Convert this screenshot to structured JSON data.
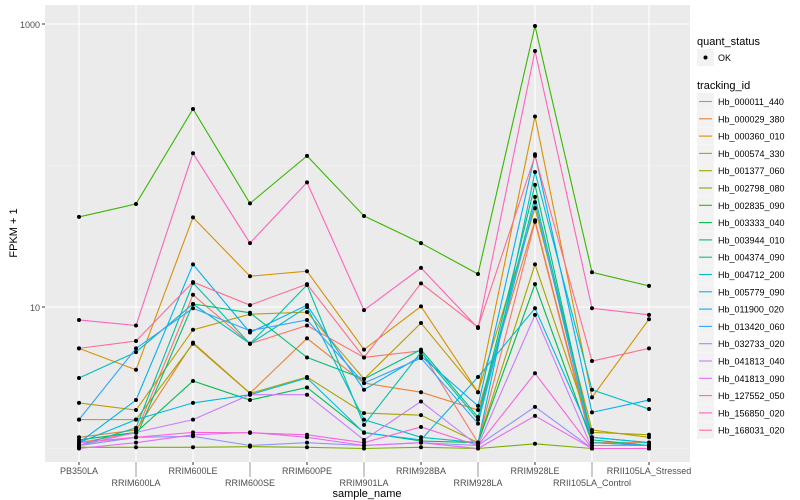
{
  "chart_data": {
    "type": "line",
    "xlabel": "sample_name",
    "ylabel": "FPKM + 1",
    "y_scale": "log10",
    "y_ticks": [
      10,
      1000
    ],
    "ylim": [
      0.8,
      1360
    ],
    "grid": true,
    "legend_position": "right",
    "categories": [
      "PB350LA",
      "RRIM600LA",
      "RRIM600LE",
      "RRIM600SE",
      "RRIM600PE",
      "RRIM901LA",
      "RRIM928BA",
      "RRIM928LA",
      "RRIM928LE",
      "RRII105LA_Control",
      "RRII105LA_Stressed"
    ],
    "point_legend": {
      "title": "quant_status",
      "entries": [
        "OK"
      ]
    },
    "line_legend_title": "tracking_id",
    "series": [
      {
        "name": "Hb_000011_440",
        "color": "#F8766D",
        "values": [
          1.1,
          1.29,
          12.2,
          5.5,
          7.4,
          4.4,
          4.9,
          1.1,
          40,
          1.05,
          1.05
        ]
      },
      {
        "name": "Hb_000029_380",
        "color": "#EA8331",
        "values": [
          1.2,
          1.35,
          5.6,
          2.46,
          6.0,
          2.9,
          2.5,
          1.87,
          41,
          1.1,
          1.1
        ]
      },
      {
        "name": "Hb_000360_010",
        "color": "#D89000",
        "values": [
          5.1,
          3.6,
          43,
          16.5,
          17.9,
          5.0,
          10.1,
          2.5,
          222,
          2.3,
          8.2
        ]
      },
      {
        "name": "Hb_000574_330",
        "color": "#C09B00",
        "values": [
          2.1,
          1.87,
          6.9,
          8.9,
          9.2,
          3.1,
          7.7,
          2.5,
          50,
          1.35,
          1.2
        ]
      },
      {
        "name": "Hb_001377_060",
        "color": "#A3A500",
        "values": [
          1.6,
          1.6,
          5.5,
          2.45,
          3.2,
          1.78,
          1.72,
          1.1,
          20,
          1.3,
          1.25
        ]
      },
      {
        "name": "Hb_002798_080",
        "color": "#7CAE00",
        "values": [
          1.02,
          1.02,
          1.02,
          1.03,
          1.02,
          1.0,
          1.02,
          1.0,
          1.08,
          1.0,
          1.0
        ]
      },
      {
        "name": "Hb_002835_090",
        "color": "#39B600",
        "values": [
          43.3,
          53.5,
          251,
          54,
          117,
          44,
          28.3,
          17.1,
          968,
          17.6,
          14.1
        ]
      },
      {
        "name": "Hb_003333_040",
        "color": "#00BB4E",
        "values": [
          1.15,
          1.3,
          3.0,
          2.2,
          2.7,
          1.3,
          1.13,
          1.1,
          14.5,
          1.1,
          1.05
        ]
      },
      {
        "name": "Hb_003944_010",
        "color": "#00BF7D",
        "values": [
          1.05,
          1.2,
          10.5,
          9.1,
          4.4,
          3.1,
          5.0,
          1.67,
          73,
          1.15,
          1.05
        ]
      },
      {
        "name": "Hb_004374_090",
        "color": "#00C1A3",
        "values": [
          1.05,
          1.4,
          14.8,
          5.5,
          14.3,
          1.47,
          4.8,
          1.6,
          60,
          1.2,
          1.1
        ]
      },
      {
        "name": "Hb_004712_200",
        "color": "#00BFC4",
        "values": [
          3.15,
          4.8,
          10.5,
          5.5,
          10,
          1.6,
          1.2,
          1.1,
          90,
          2.6,
          1.9
        ]
      },
      {
        "name": "Hb_005779_090",
        "color": "#00BAE0",
        "values": [
          1.1,
          1.6,
          2.1,
          2.4,
          3.15,
          1.29,
          1.15,
          3.2,
          9.8,
          1.2,
          1.1
        ]
      },
      {
        "name": "Hb_011900_020",
        "color": "#00B0F6",
        "values": [
          1.1,
          2.2,
          20,
          6.6,
          10.3,
          2.6,
          4.5,
          2.0,
          120,
          1.8,
          2.2
        ]
      },
      {
        "name": "Hb_013420_060",
        "color": "#35A2FF",
        "values": [
          1.6,
          5.1,
          9.8,
          6.8,
          8.1,
          2.9,
          4.35,
          1.5,
          55,
          1.1,
          1.05
        ]
      },
      {
        "name": "Hb_032733_020",
        "color": "#9590FF",
        "values": [
          1.05,
          1.2,
          1.22,
          1.05,
          1.1,
          1.05,
          1.1,
          1.05,
          1.97,
          1.0,
          1.0
        ]
      },
      {
        "name": "Hb_041813_040",
        "color": "#C77CFF",
        "values": [
          1.05,
          1.3,
          1.6,
          2.4,
          2.4,
          1.15,
          2.15,
          1.05,
          8.8,
          1.0,
          1.0
        ]
      },
      {
        "name": "Hb_041813_090",
        "color": "#E76BF3",
        "values": [
          1.0,
          1.1,
          1.25,
          1.3,
          1.2,
          1.05,
          1.1,
          1.0,
          1.7,
          1.0,
          1.0
        ]
      },
      {
        "name": "Hb_127552_050",
        "color": "#FA62DB",
        "values": [
          1.1,
          1.2,
          1.3,
          1.29,
          1.25,
          1.1,
          1.42,
          1.05,
          3.4,
          1.0,
          1.0
        ]
      },
      {
        "name": "Hb_156850_020",
        "color": "#FF62BC",
        "values": [
          8.1,
          7.4,
          122,
          28.3,
          76,
          9.5,
          18.9,
          7.1,
          645,
          9.8,
          8.8
        ]
      },
      {
        "name": "Hb_168031_020",
        "color": "#FF6C91",
        "values": [
          5.1,
          5.75,
          15,
          10.3,
          14.5,
          4.4,
          14.7,
          7.2,
          117,
          4.15,
          5.1
        ]
      }
    ]
  }
}
